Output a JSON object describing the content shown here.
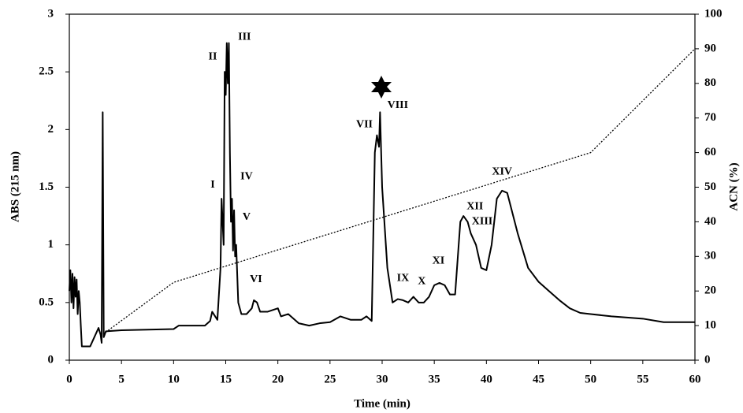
{
  "chart_data": {
    "type": "line",
    "xlabel": "Time (min)",
    "ylabel": "ABS (215 nm)",
    "y2label": "ACN (%)",
    "xlim": [
      0,
      60
    ],
    "xticks": [
      0,
      5,
      10,
      15,
      20,
      25,
      30,
      35,
      40,
      45,
      50,
      55,
      60
    ],
    "ylim": [
      0,
      3
    ],
    "yticks": [
      0,
      0.5,
      1,
      1.5,
      2,
      2.5,
      3
    ],
    "y2lim": [
      0,
      100
    ],
    "y2ticks": [
      0,
      10,
      20,
      30,
      40,
      50,
      60,
      70,
      80,
      90,
      100
    ],
    "series": [
      {
        "color": "#000000",
        "style": "solid",
        "x": [
          0,
          0.1,
          0.2,
          0.3,
          0.4,
          0.5,
          0.6,
          0.7,
          0.8,
          0.9,
          1.0,
          1.1,
          1.2,
          2,
          2.8,
          3.0,
          3.1,
          3.2,
          3.3,
          3.5,
          5,
          10,
          10.5,
          13,
          13.5,
          13.7,
          14.2,
          14.5,
          14.6,
          14.8,
          14.9,
          15.0,
          15.1,
          15.2,
          15.3,
          15.4,
          15.5,
          15.6,
          15.7,
          15.8,
          15.9,
          16.0,
          16.2,
          16.5,
          17,
          17.5,
          17.7,
          18,
          18.3,
          19,
          20,
          20.3,
          21,
          22,
          23,
          24,
          25,
          26,
          27,
          28,
          28.5,
          29,
          29.3,
          29.5,
          29.7,
          29.8,
          30,
          30.5,
          31,
          31.5,
          32,
          32.5,
          33,
          33.5,
          34,
          34.5,
          35,
          35.5,
          36,
          36.5,
          37,
          37.5,
          37.8,
          38.2,
          38.5,
          39,
          39.5,
          40,
          40.5,
          41,
          41.5,
          42,
          43,
          44,
          45,
          46,
          47,
          48,
          49,
          50,
          52,
          55,
          57,
          60
        ],
        "y": [
          0.6,
          0.78,
          0.5,
          0.75,
          0.45,
          0.72,
          0.55,
          0.7,
          0.4,
          0.6,
          0.5,
          0.3,
          0.12,
          0.12,
          0.28,
          0.22,
          0.15,
          2.15,
          0.2,
          0.25,
          0.26,
          0.27,
          0.3,
          0.3,
          0.34,
          0.42,
          0.35,
          0.8,
          1.4,
          1.0,
          2.5,
          2.3,
          2.75,
          2.4,
          2.75,
          1.8,
          1.2,
          1.4,
          0.95,
          1.3,
          0.9,
          1.0,
          0.5,
          0.4,
          0.4,
          0.45,
          0.52,
          0.5,
          0.42,
          0.42,
          0.45,
          0.38,
          0.4,
          0.32,
          0.3,
          0.32,
          0.33,
          0.38,
          0.35,
          0.35,
          0.38,
          0.34,
          1.8,
          1.95,
          1.85,
          2.15,
          1.5,
          0.8,
          0.5,
          0.53,
          0.52,
          0.5,
          0.55,
          0.5,
          0.5,
          0.55,
          0.65,
          0.67,
          0.65,
          0.57,
          0.57,
          1.2,
          1.25,
          1.2,
          1.1,
          1.0,
          0.8,
          0.78,
          1.0,
          1.4,
          1.47,
          1.45,
          1.1,
          0.8,
          0.68,
          0.6,
          0.52,
          0.45,
          0.41,
          0.4,
          0.38,
          0.36,
          0.33,
          0.33
        ]
      },
      {
        "color": "#000000",
        "style": "dotted",
        "axis": "y2",
        "x": [
          3,
          10,
          50,
          60
        ],
        "y": [
          7,
          22.5,
          60,
          90
        ]
      }
    ],
    "annotations": [
      {
        "text": "I",
        "x": 13.75,
        "y": 1.52
      },
      {
        "text": "II",
        "x": 13.75,
        "y": 2.63
      },
      {
        "text": "III",
        "x": 16.8,
        "y": 2.8
      },
      {
        "text": "IV",
        "x": 17.0,
        "y": 1.59
      },
      {
        "text": "V",
        "x": 17.0,
        "y": 1.24
      },
      {
        "text": "VI",
        "x": 17.9,
        "y": 0.7
      },
      {
        "text": "VII",
        "x": 28.3,
        "y": 2.04
      },
      {
        "text": "VIII",
        "x": 31.5,
        "y": 2.21
      },
      {
        "text": "IX",
        "x": 32.0,
        "y": 0.71
      },
      {
        "text": "X",
        "x": 33.8,
        "y": 0.68
      },
      {
        "text": "XI",
        "x": 35.4,
        "y": 0.86
      },
      {
        "text": "XII",
        "x": 38.9,
        "y": 1.33
      },
      {
        "text": "XIII",
        "x": 39.6,
        "y": 1.2
      },
      {
        "text": "XIV",
        "x": 41.5,
        "y": 1.63
      }
    ]
  }
}
